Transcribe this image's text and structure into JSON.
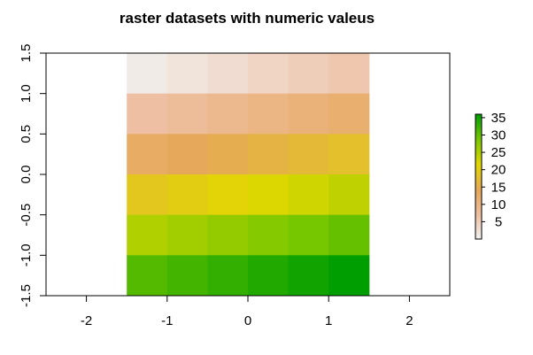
{
  "chart_data": {
    "type": "heatmap",
    "title": "raster datasets with numeric valeus",
    "xlabel": "",
    "ylabel": "",
    "xlim": [
      -2.5,
      2.5
    ],
    "ylim": [
      -1.5,
      1.5
    ],
    "x_ticks": [
      -2,
      -1,
      0,
      1,
      2
    ],
    "y_ticks": [
      -1.5,
      -1.0,
      -0.5,
      0.0,
      0.5,
      1.0,
      1.5
    ],
    "x_tick_labels": [
      "-2",
      "-1",
      "0",
      "1",
      "2"
    ],
    "y_tick_labels": [
      "-1.5",
      "-1.0",
      "-0.5",
      "0.0",
      "0.5",
      "1.0",
      "1.5"
    ],
    "raster_extent": {
      "xmin": -1.5,
      "xmax": 1.5,
      "ymin": -1.5,
      "ymax": 1.5
    },
    "ncol": 6,
    "nrow": 6,
    "values": [
      [
        1,
        2,
        3,
        4,
        5,
        6
      ],
      [
        7,
        8,
        9,
        10,
        11,
        12
      ],
      [
        13,
        14,
        15,
        16,
        17,
        18
      ],
      [
        19,
        20,
        21,
        22,
        23,
        24
      ],
      [
        25,
        26,
        27,
        28,
        29,
        30
      ],
      [
        31,
        32,
        33,
        34,
        35,
        36
      ]
    ],
    "legend": {
      "position": "right",
      "min": 0,
      "max": 36,
      "ticks": [
        5,
        10,
        15,
        20,
        25,
        30,
        35
      ],
      "tick_labels": [
        "5",
        "10",
        "15",
        "20",
        "25",
        "30",
        "35"
      ]
    },
    "palette": [
      "#F2F2F2",
      "#EEBEA0",
      "#E6A857",
      "#E2D800",
      "#79C700",
      "#009E00"
    ]
  }
}
